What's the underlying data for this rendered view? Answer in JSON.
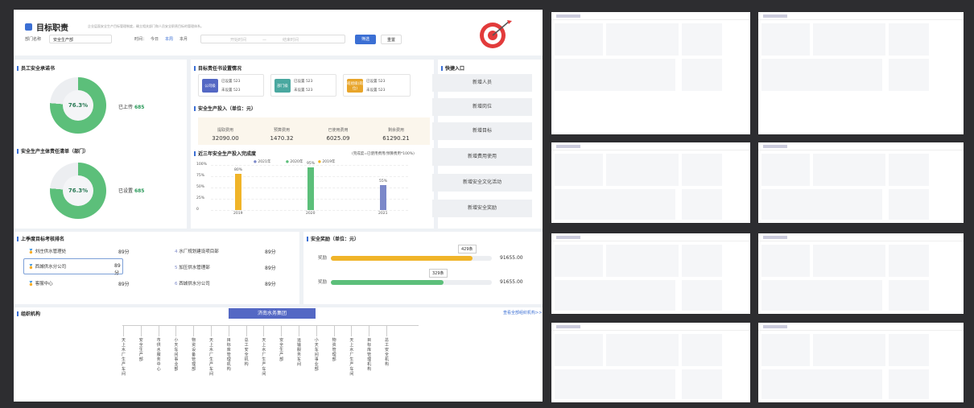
{
  "header": {
    "title": "目标职责",
    "subtitle": "企业层面安全生产目标管理制度，确立相关部门和人员安全职责目标的管理体系。",
    "dept_label": "部门名称",
    "dept_value": "安全生产部",
    "time_label": "时间：",
    "time_opts": [
      "今日",
      "本周",
      "本月"
    ],
    "start_ph": "开始时间",
    "sep": "—",
    "end_ph": "结束时间",
    "search": "筛选",
    "reset": "重置"
  },
  "employee": {
    "title": "员工安全承诺书",
    "pct": "76.3%",
    "label": "已上传",
    "value": "685",
    "ratio": 0.763
  },
  "dept_list": {
    "title": "安全生产主体责任清单（部门）",
    "pct": "76.3%",
    "label": "已设置",
    "value": "685",
    "ratio": 0.763
  },
  "target": {
    "title": "目标责任书设置情况",
    "cards": [
      {
        "tag": "公司级",
        "color": "#5468c4",
        "set": "已设置",
        "set_v": "523",
        "unset": "未设置",
        "unset_v": "523"
      },
      {
        "tag": "部门级",
        "color": "#4aa8a0",
        "set": "已设置",
        "set_v": "523",
        "unset": "未设置",
        "unset_v": "523"
      },
      {
        "tag": "班组级(岗位)",
        "color": "#e8a52a",
        "set": "已设置",
        "set_v": "523",
        "unset": "未设置",
        "unset_v": "523"
      }
    ]
  },
  "invest": {
    "title": "安全生产投入（单位：元）",
    "stats": [
      {
        "k": "提取费用",
        "v": "32090.00"
      },
      {
        "k": "预算费用",
        "v": "1470.32"
      },
      {
        "k": "已使用费用",
        "v": "6025.09"
      },
      {
        "k": "剩余费用",
        "v": "61290.21"
      }
    ]
  },
  "chart": {
    "title": "近三年安全生产投入完成度",
    "note": "(完成度=已使用费用/预算费用*100%)",
    "legend": [
      "2021年",
      "2020年",
      "2019年"
    ]
  },
  "chart_data": {
    "type": "bar",
    "categories": [
      "2019",
      "2020",
      "2021"
    ],
    "values": [
      80,
      95,
      55
    ],
    "value_labels": [
      "80%",
      "95%",
      "55%"
    ],
    "colors": [
      "#f0b429",
      "#5cbf7a",
      "#7b88c9"
    ],
    "yticks": [
      "100%",
      "75%",
      "50%",
      "25%",
      "0"
    ],
    "ylim": [
      0,
      100
    ]
  },
  "quick": {
    "title": "快捷入口",
    "items": [
      "新增人员",
      "新增岗位",
      "新增目标",
      "新增费用使用",
      "新增安全文化活动",
      "新增安全奖励"
    ]
  },
  "rank": {
    "title": "上季度目标考核排名",
    "left": [
      {
        "n": "刘庄供水管理处",
        "v": "89分"
      },
      {
        "n": "西城供水分公司",
        "v": "89分"
      },
      {
        "n": "客服中心",
        "v": "89分"
      }
    ],
    "right": [
      {
        "i": "4",
        "n": "水厂规划建设项目部",
        "v": "89分"
      },
      {
        "i": "5",
        "n": "加压供水管理部",
        "v": "89分"
      },
      {
        "i": "6",
        "n": "西城供水分公司",
        "v": "89分"
      }
    ]
  },
  "reward": {
    "title": "安全奖励（单位：元）",
    "rows": [
      {
        "label": "奖励",
        "count": "429条",
        "value": "91655.00",
        "color": "#f0b429",
        "frac": 0.88
      },
      {
        "label": "奖励",
        "count": "329条",
        "value": "91655.00",
        "color": "#5cbf7a",
        "frac": 0.7
      }
    ]
  },
  "org": {
    "title": "组织机构",
    "root": "济南水务集团",
    "more": "查看全部组织机构>>",
    "nodes": [
      "天上水厂生产车间",
      "安全生产部",
      "市供水服务中心",
      "小天车间事业部",
      "物资设备管理部",
      "天上水厂生产车间",
      "目标库管理机构",
      "总工安全机构",
      "天上水厂生产车间",
      "安全生产部",
      "运输服务车间",
      "小天车间事业部",
      "物资管理部",
      "天上水厂生产车间",
      "目标库管理机构",
      "总工安全机构"
    ]
  }
}
